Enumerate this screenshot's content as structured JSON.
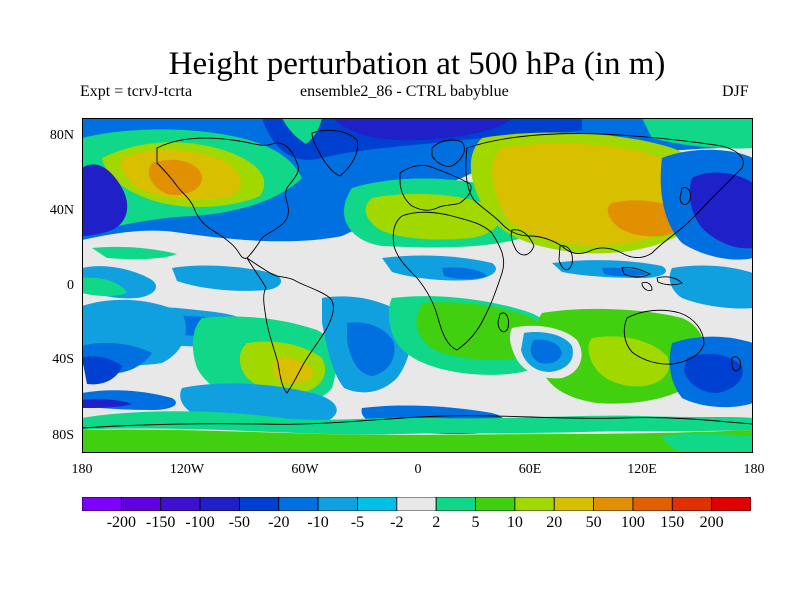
{
  "title": "Height perturbation at 500 hPa (in m)",
  "subtitle_left": "Expt = tcrvJ-tcrta",
  "subtitle_center": "ensemble2_86 - CTRL babyblue",
  "subtitle_right": "DJF",
  "lat_labels": [
    "80N",
    "40N",
    "0",
    "40S",
    "80S"
  ],
  "lon_labels": [
    "180",
    "120W",
    "60W",
    "0",
    "60E",
    "120E",
    "180"
  ],
  "colorbar": {
    "labels": [
      "-200",
      "-150",
      "-100",
      "-50",
      "-20",
      "-10",
      "-5",
      "-2",
      "2",
      "5",
      "10",
      "20",
      "50",
      "100",
      "150",
      "200"
    ],
    "colors": [
      "#8000ff",
      "#6000e0",
      "#4010d0",
      "#2020c8",
      "#0040d0",
      "#0070e0",
      "#10a0e0",
      "#00c0e8",
      "#e8e8e8",
      "#10d888",
      "#40d010",
      "#a0d800",
      "#d8c000",
      "#e09000",
      "#e06000",
      "#e03000",
      "#e00000"
    ]
  },
  "colors": {
    "background": "#ffffff",
    "neutral": "#e8e8e8"
  }
}
